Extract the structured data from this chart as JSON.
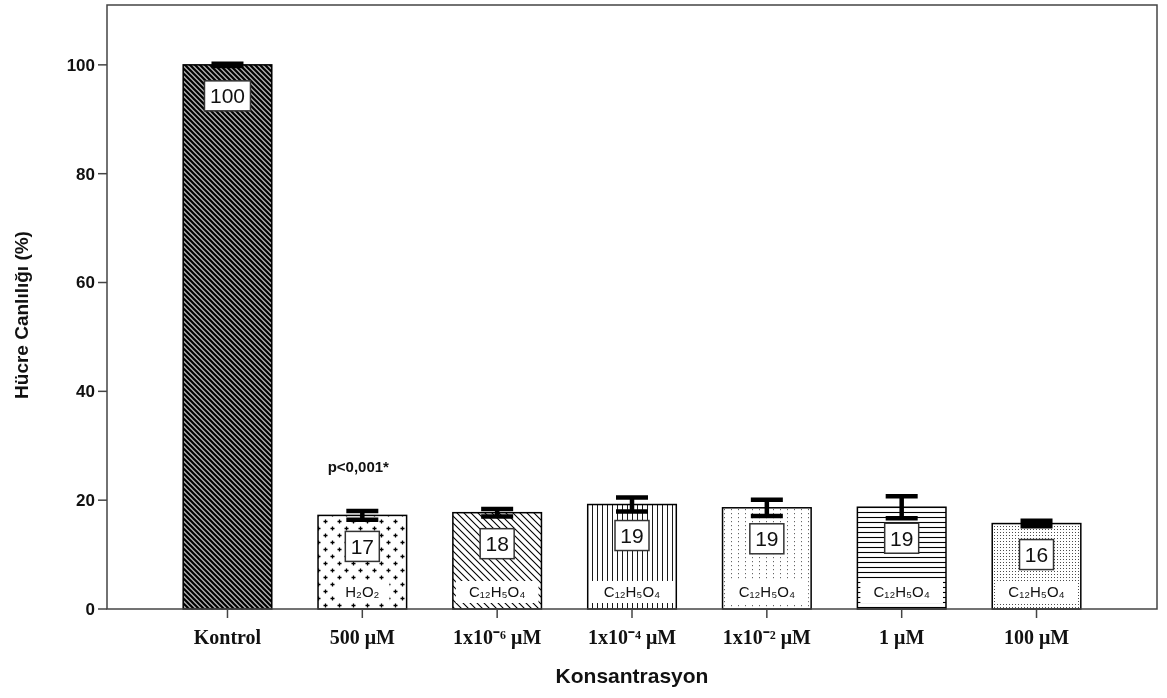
{
  "chart_data": {
    "type": "bar",
    "categories": [
      "Kontrol",
      "500 μM",
      "1x10⁻⁶ μM",
      "1x10⁻⁴ μM",
      "1x10⁻² μM",
      "1 μM",
      "100 μM"
    ],
    "values": [
      100,
      17.2,
      17.7,
      19.2,
      18.6,
      18.7,
      15.7
    ],
    "errors": [
      0.2,
      0.8,
      0.7,
      1.3,
      1.5,
      2.0,
      0.5
    ],
    "value_labels": [
      "100",
      "17",
      "18",
      "19",
      "19",
      "19",
      "16"
    ],
    "color": "#000000",
    "ylim": [
      0,
      111
    ],
    "yticks": [
      0,
      20,
      40,
      60,
      80,
      100
    ],
    "xlabel": "Konsantrasyon",
    "ylabel": "Hücre Canlılığı (%)",
    "annotations": [
      "p<0,001*",
      "H₂O₂",
      "C₁₂H₅O₄",
      "C₁₂H₅O₄",
      "C₁₂H₅O₄",
      "C₁₂H₅O₄",
      "C₁₂H₅O₄"
    ]
  }
}
